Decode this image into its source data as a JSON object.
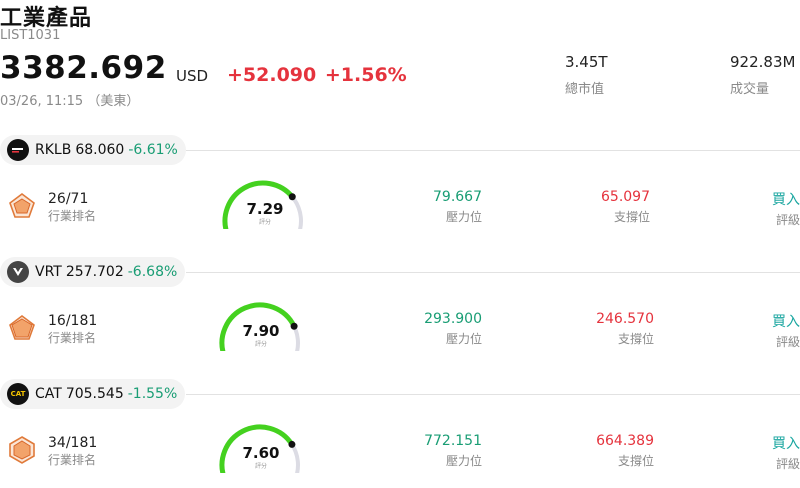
{
  "header": {
    "title": "工業產品",
    "code": "LIST1031",
    "price": "3382.692",
    "unit": "USD",
    "change": "+52.090",
    "change_pct": "+1.56%",
    "datetime": "03/26, 11:15 （美東）",
    "market_cap_value": "3.45T",
    "market_cap_label": "總市值",
    "volume_value": "922.83M",
    "volume_label": "成交量"
  },
  "labels": {
    "rank": "行業排名",
    "score": "評分",
    "resistance": "壓力位",
    "support": "支撐位",
    "rating": "評級"
  },
  "colors": {
    "up": "#e5333d",
    "down": "#199d74",
    "gauge_fill": "#44d11f",
    "gauge_track": "#dcdce4"
  },
  "stocks": [
    {
      "ticker": "RKLB",
      "price": "68.060",
      "change_pct": "-6.61%",
      "logo_icon": "rocket-lab-logo-icon",
      "rank": "26/71",
      "score": "7.29",
      "score_fraction": 0.729,
      "resistance": "79.667",
      "support": "65.097",
      "rating": "買入"
    },
    {
      "ticker": "VRT",
      "price": "257.702",
      "change_pct": "-6.68%",
      "logo_icon": "vertiv-logo-icon",
      "rank": "16/181",
      "score": "7.90",
      "score_fraction": 0.79,
      "resistance": "293.900",
      "support": "246.570",
      "rating": "買入"
    },
    {
      "ticker": "CAT",
      "price": "705.545",
      "change_pct": "-1.55%",
      "logo_icon": "caterpillar-logo-icon",
      "logo_text": "CAT",
      "rank": "34/181",
      "score": "7.60",
      "score_fraction": 0.76,
      "resistance": "772.151",
      "support": "664.389",
      "rating": "買入"
    }
  ]
}
